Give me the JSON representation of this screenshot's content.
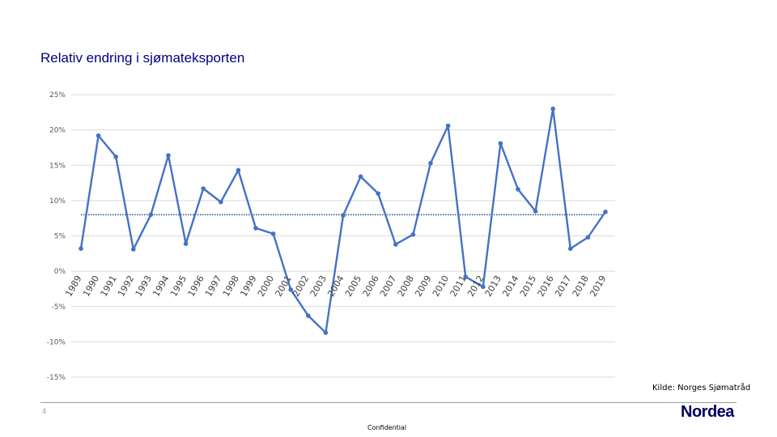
{
  "slide": {
    "title": "Relativ endring i sjømateksporten",
    "source": "Kilde: Norges Sjømatråd",
    "page_number": "4",
    "logo": "Nordea",
    "footer": "Confidential"
  },
  "colors": {
    "series": "#4472c4",
    "trend": "#2f5597",
    "grid": "#d9d9d9",
    "title": "#000080",
    "logo": "#00005e"
  },
  "chart_data": {
    "type": "line",
    "title": "",
    "xlabel": "",
    "ylabel": "",
    "ylim": [
      -15,
      25
    ],
    "y_ticks": [
      25,
      20,
      15,
      10,
      5,
      0,
      -5,
      -10,
      -15
    ],
    "y_tick_labels": [
      "25%",
      "20%",
      "15%",
      "10%",
      "5%",
      "0%",
      "-5%",
      "-10%",
      "-15%"
    ],
    "grid": true,
    "legend": "none",
    "categories": [
      "1989",
      "1990",
      "1991",
      "1992",
      "1993",
      "1994",
      "1995",
      "1996",
      "1997",
      "1998",
      "1999",
      "2000",
      "2001",
      "2002",
      "2003",
      "2004",
      "2005",
      "2006",
      "2007",
      "2008",
      "2009",
      "2010",
      "2011",
      "2012",
      "2013",
      "2014",
      "2015",
      "2016",
      "2017",
      "2018",
      "2019"
    ],
    "series": [
      {
        "values": [
          3.2,
          19.2,
          16.2,
          3.1,
          8.0,
          16.4,
          3.9,
          11.7,
          9.8,
          14.3,
          6.1,
          5.3,
          -2.6,
          -6.3,
          -8.7,
          7.9,
          13.4,
          11.0,
          3.8,
          5.2,
          15.3,
          20.6,
          -0.8,
          -2.2,
          18.1,
          11.6,
          8.5,
          23.0,
          3.2,
          4.8,
          8.4
        ]
      }
    ],
    "trendline": {
      "style": "dotted",
      "value": 8.0
    }
  }
}
